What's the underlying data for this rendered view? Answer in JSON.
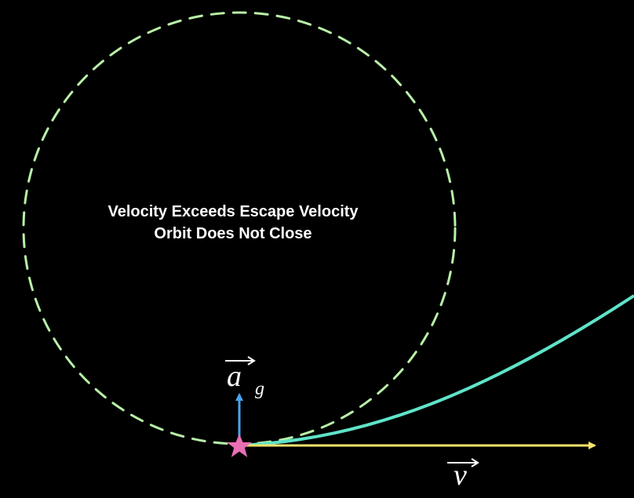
{
  "caption": {
    "line1": "Velocity Exceeds Escape Velocity",
    "line2": "Orbit Does Not Close"
  },
  "labels": {
    "gravity_symbol": "a",
    "gravity_subscript": "g",
    "velocity_symbol": "v"
  },
  "colors": {
    "background": "#000000",
    "circular_orbit": "#b8f0a8",
    "escape_path": "#5fe3c8",
    "velocity_arrow": "#f7e26b",
    "gravity_arrow": "#4aa3f0",
    "body": "#e86fb5",
    "text": "#ffffff"
  },
  "icons": {
    "body": "star-icon"
  }
}
